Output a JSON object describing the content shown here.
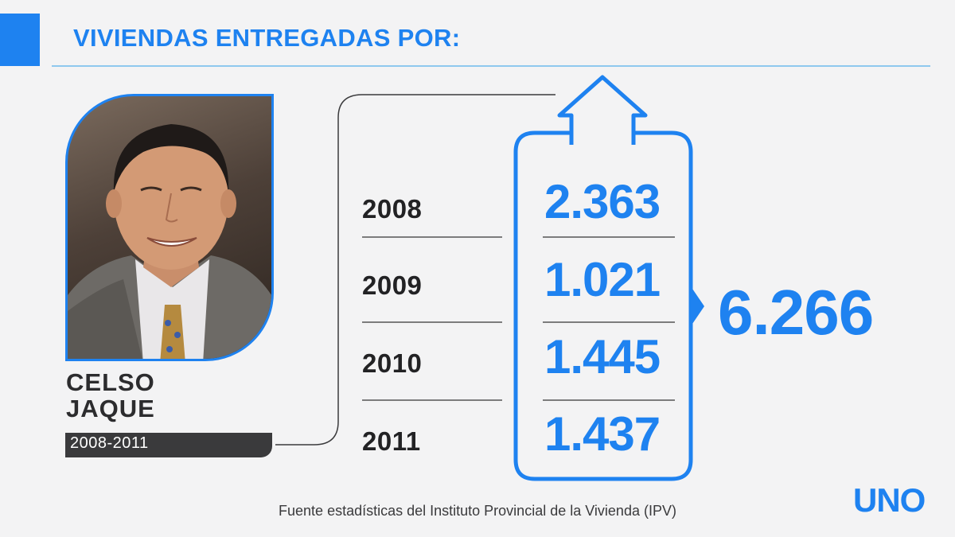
{
  "header": {
    "title": "VIVIENDAS ENTREGADAS POR:"
  },
  "person": {
    "name_line1": "CELSO",
    "name_line2": "JAQUE",
    "period": "2008-2011"
  },
  "rows": [
    {
      "year": "2008",
      "value": "2.363"
    },
    {
      "year": "2009",
      "value": "1.021"
    },
    {
      "year": "2010",
      "value": "1.445"
    },
    {
      "year": "2011",
      "value": "1.437"
    }
  ],
  "total": "6.266",
  "footer": {
    "source": "Fuente estadísticas del Instituto Provincial de la Vivienda (IPV)"
  },
  "brand": {
    "logo": "UNO"
  },
  "colors": {
    "accent": "#1e82f0",
    "text_dark": "#222224",
    "background": "#f3f3f4"
  },
  "icons": {
    "house": "house-icon",
    "arrow": "arrow-right-icon"
  }
}
